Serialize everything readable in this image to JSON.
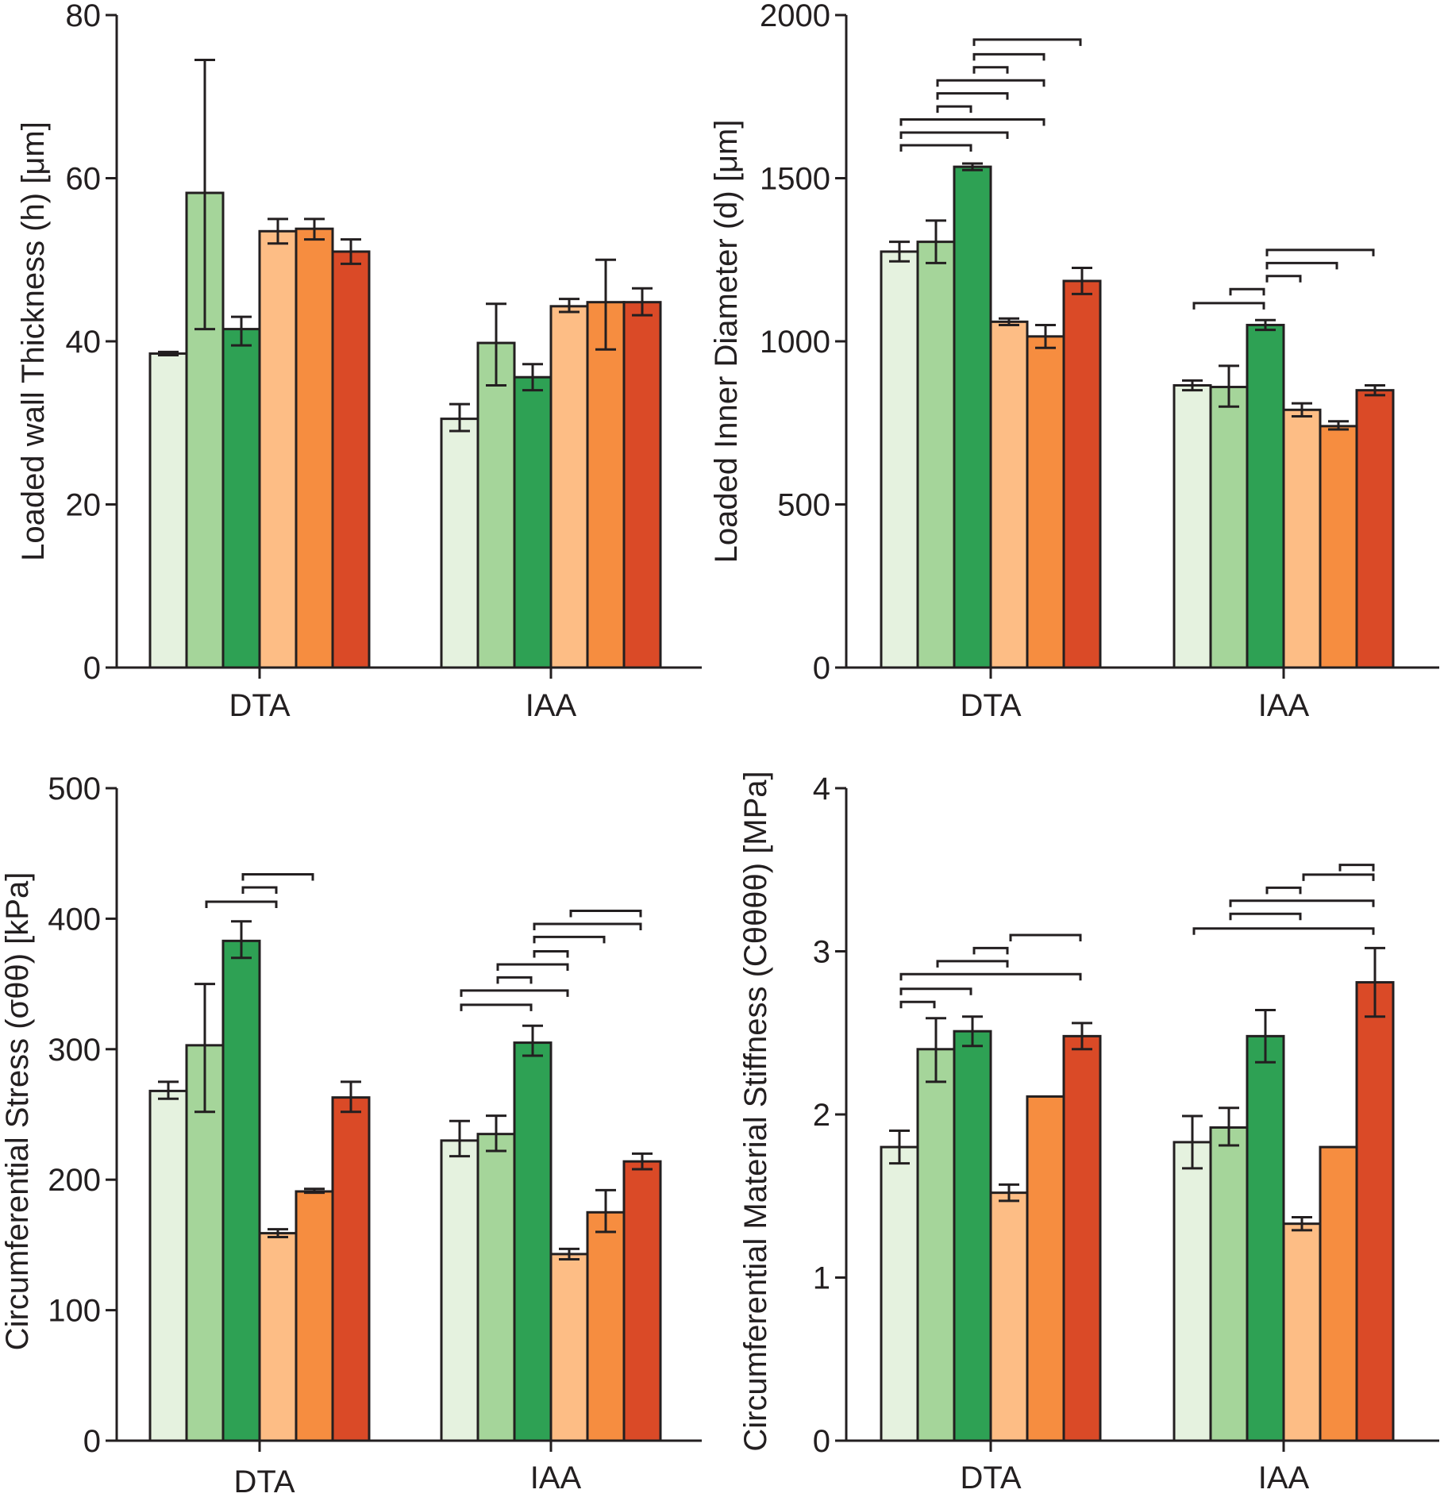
{
  "chart_data": [
    {
      "type": "bar",
      "ylabel": "Loaded wall Thickness (h) [μm]",
      "ylim": [
        0,
        80
      ],
      "yticks": [
        0,
        20,
        40,
        60,
        80
      ],
      "categories": [
        "DTA",
        "IAA"
      ],
      "series_colors": [
        "#e5f2df",
        "#a5d59a",
        "#2ea154",
        "#fdbd85",
        "#f68d40",
        "#da4a27"
      ],
      "values": [
        [
          38.5,
          58.2,
          41.5,
          53.5,
          53.8,
          51.0
        ],
        [
          30.5,
          39.8,
          35.6,
          44.3,
          44.8,
          44.8
        ]
      ],
      "errors": [
        [
          [
            38.3,
            38.7
          ],
          [
            41.5,
            74.5
          ],
          [
            39.5,
            43.0
          ],
          [
            52.0,
            55.0
          ],
          [
            52.5,
            55.0
          ],
          [
            49.5,
            52.5
          ]
        ],
        [
          [
            29.0,
            32.3
          ],
          [
            34.6,
            44.6
          ],
          [
            34.0,
            37.2
          ],
          [
            43.6,
            45.2
          ],
          [
            39.0,
            50.0
          ],
          [
            43.2,
            46.5
          ]
        ]
      ],
      "significance": [
        [],
        []
      ]
    },
    {
      "type": "bar",
      "ylabel": "Loaded Inner Diameter (d) [μm]",
      "ylim": [
        0,
        2000
      ],
      "yticks": [
        0,
        500,
        1000,
        1500,
        2000
      ],
      "categories": [
        "DTA",
        "IAA"
      ],
      "series_colors": [
        "#e5f2df",
        "#a5d59a",
        "#2ea154",
        "#fdbd85",
        "#f68d40",
        "#da4a27"
      ],
      "values": [
        [
          1275,
          1305,
          1535,
          1060,
          1015,
          1185
        ],
        [
          865,
          860,
          1050,
          790,
          740,
          850
        ]
      ],
      "errors": [
        [
          [
            1245,
            1305
          ],
          [
            1240,
            1370
          ],
          [
            1525,
            1545
          ],
          [
            1050,
            1070
          ],
          [
            980,
            1050
          ],
          [
            1145,
            1225
          ]
        ],
        [
          [
            850,
            880
          ],
          [
            800,
            925
          ],
          [
            1035,
            1065
          ],
          [
            770,
            810
          ],
          [
            730,
            755
          ],
          [
            835,
            865
          ]
        ]
      ],
      "significance": [
        [
          [
            1,
            3,
            1601
          ],
          [
            1,
            4,
            1640
          ],
          [
            1,
            5,
            1680
          ],
          [
            2,
            3,
            1720
          ],
          [
            2,
            4,
            1760
          ],
          [
            2,
            5,
            1800
          ],
          [
            3,
            4,
            1840
          ],
          [
            3,
            5,
            1880
          ],
          [
            3,
            6,
            1925
          ]
        ],
        [
          [
            1,
            3,
            1117
          ],
          [
            2,
            3,
            1160
          ],
          [
            3,
            4,
            1200
          ],
          [
            3,
            5,
            1240
          ],
          [
            3,
            6,
            1280
          ]
        ]
      ]
    },
    {
      "type": "bar",
      "ylabel": "Circumferential Stress (σθθ) [kPa]",
      "ylim": [
        0,
        500
      ],
      "yticks": [
        0,
        100,
        200,
        300,
        400,
        500
      ],
      "categories": [
        "DTA",
        "IAA"
      ],
      "series_colors": [
        "#e5f2df",
        "#a5d59a",
        "#2ea154",
        "#fdbd85",
        "#f68d40",
        "#da4a27"
      ],
      "values": [
        [
          268,
          303,
          383,
          159,
          191,
          263
        ],
        [
          230,
          235,
          305,
          143,
          175,
          214
        ]
      ],
      "errors": [
        [
          [
            262,
            275
          ],
          [
            252,
            350
          ],
          [
            370,
            398
          ],
          [
            156,
            162
          ],
          [
            190,
            193
          ],
          [
            252,
            275
          ]
        ],
        [
          [
            218,
            245
          ],
          [
            222,
            249
          ],
          [
            295,
            318
          ],
          [
            139,
            147
          ],
          [
            160,
            192
          ],
          [
            208,
            220
          ]
        ]
      ],
      "significance": [
        [
          [
            2,
            4,
            413
          ],
          [
            3,
            4,
            424
          ],
          [
            3,
            5,
            434
          ]
        ],
        [
          [
            1,
            3,
            334
          ],
          [
            1,
            4,
            345
          ],
          [
            2,
            3,
            355
          ],
          [
            2,
            4,
            365
          ],
          [
            3,
            4,
            375
          ],
          [
            3,
            5,
            386
          ],
          [
            3,
            6,
            396
          ],
          [
            4,
            6,
            406
          ]
        ]
      ]
    },
    {
      "type": "bar",
      "ylabel": "Circumferential Material Stiffness (Cθθθθ) [MPa]",
      "ylim": [
        0,
        4
      ],
      "yticks": [
        0,
        1,
        2,
        3,
        4
      ],
      "categories": [
        "DTA",
        "IAA"
      ],
      "series_colors": [
        "#e5f2df",
        "#a5d59a",
        "#2ea154",
        "#fdbd85",
        "#f68d40",
        "#da4a27"
      ],
      "values": [
        [
          1.8,
          2.4,
          2.51,
          1.52,
          2.11,
          2.48
        ],
        [
          1.83,
          1.92,
          2.48,
          1.33,
          1.8,
          2.81
        ]
      ],
      "errors": [
        [
          [
            1.7,
            1.9
          ],
          [
            2.2,
            2.59
          ],
          [
            2.42,
            2.6
          ],
          [
            1.47,
            1.57
          ],
          null,
          [
            2.4,
            2.56
          ]
        ],
        [
          [
            1.67,
            1.99
          ],
          [
            1.81,
            2.04
          ],
          [
            2.32,
            2.64
          ],
          [
            1.29,
            1.37
          ],
          null,
          [
            2.6,
            3.02
          ]
        ]
      ],
      "significance": [
        [
          [
            1,
            2,
            2.69
          ],
          [
            1,
            3,
            2.77
          ],
          [
            1,
            6,
            2.86
          ],
          [
            2,
            4,
            2.94
          ],
          [
            3,
            4,
            3.02
          ],
          [
            4,
            6,
            3.1
          ]
        ],
        [
          [
            1,
            6,
            3.14
          ],
          [
            2,
            4,
            3.23
          ],
          [
            2,
            6,
            3.31
          ],
          [
            3,
            4,
            3.39
          ],
          [
            4,
            6,
            3.47
          ],
          [
            5,
            6,
            3.53
          ]
        ]
      ]
    }
  ]
}
